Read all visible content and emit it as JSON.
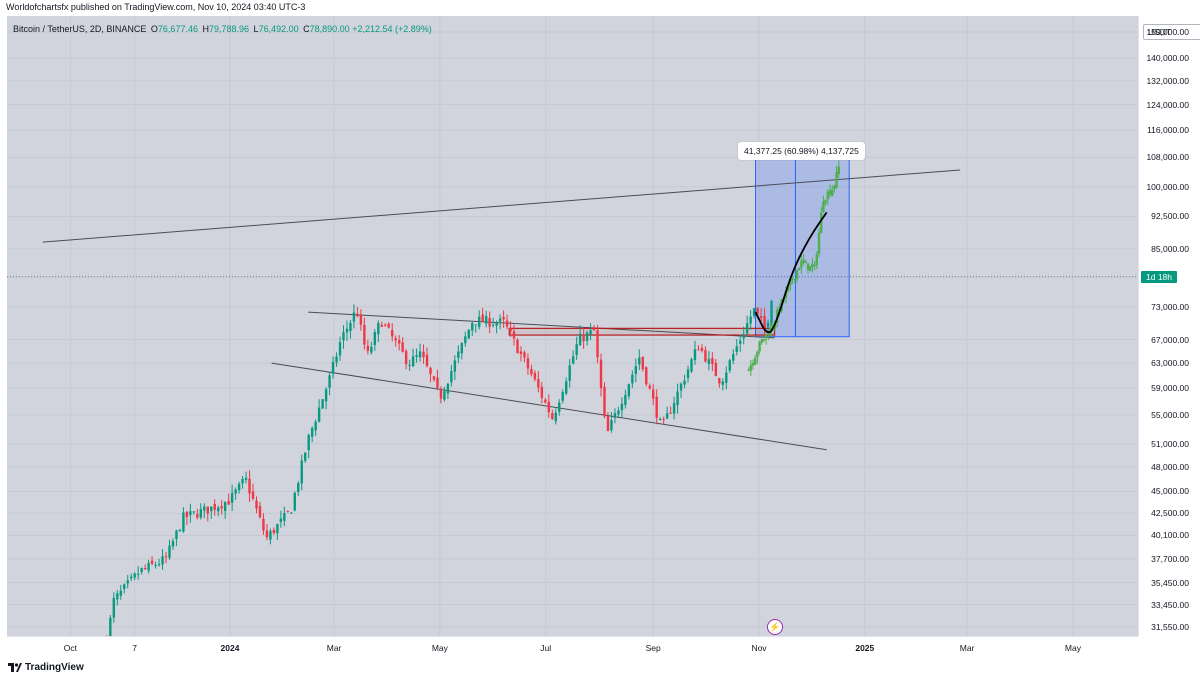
{
  "publisher_line": "Worldofchartsfx published on TradingView.com, Nov 10, 2024 03:40 UTC-3",
  "legend": {
    "symbol": "Bitcoin / TetherUS, 2D, BINANCE",
    "o_key": "O",
    "o_val": "76,677.46",
    "h_key": "H",
    "h_val": "79,788.96",
    "l_key": "L",
    "l_val": "76,492.00",
    "c_key": "C",
    "c_val": "78,890.00",
    "change": "+2,212.54 (+2.89%)"
  },
  "currency": "USDT",
  "countdown": "1d 18h",
  "measure_label": "41,377.25 (60.98%) 4,137,725",
  "footer_logo": "TradingView",
  "colors": {
    "up": "#089981",
    "down": "#f23645",
    "projection": "#4caf50",
    "box": "#2962ff",
    "zone": "#b71c1c"
  },
  "chart_data": {
    "type": "candlestick",
    "title": "",
    "timeframe": "2D",
    "y_ticks": [
      150000,
      140000,
      132000,
      124000,
      116000,
      108000,
      100000,
      92500,
      85000,
      79000,
      73000,
      67000,
      63000,
      59000,
      55000,
      51000,
      48000,
      45000,
      42500,
      40100,
      37700,
      35450,
      33450,
      31550
    ],
    "y_tick_labels": [
      "150,000.00",
      "140,000.00",
      "132,000.00",
      "124,000.00",
      "116,000.00",
      "108,000.00",
      "100,000.00",
      "92,500.00",
      "85,000.00",
      "",
      "73,000.00",
      "67,000.00",
      "63,000.00",
      "59,000.00",
      "55,000.00",
      "51,000.00",
      "48,000.00",
      "45,000.00",
      "42,500.00",
      "40,100.00",
      "37,700.00",
      "35,450.00",
      "33,450.00",
      "31,550.00"
    ],
    "x_ticks": [
      {
        "label": "Oct",
        "date": "2023-10-01",
        "bold": false
      },
      {
        "label": "7",
        "date": "2023-11-07",
        "bold": false
      },
      {
        "label": "2024",
        "date": "2024-01-01",
        "bold": true
      },
      {
        "label": "Mar",
        "date": "2024-03-01",
        "bold": false
      },
      {
        "label": "May",
        "date": "2024-05-01",
        "bold": false
      },
      {
        "label": "Jul",
        "date": "2024-07-01",
        "bold": false
      },
      {
        "label": "Sep",
        "date": "2024-09-01",
        "bold": false
      },
      {
        "label": "Nov",
        "date": "2024-11-01",
        "bold": false
      },
      {
        "label": "2025",
        "date": "2025-01-01",
        "bold": true
      },
      {
        "label": "Mar",
        "date": "2025-03-01",
        "bold": false
      },
      {
        "label": "May",
        "date": "2025-05-01",
        "bold": false
      }
    ],
    "price_path": [
      [
        "2023-10-22",
        30500
      ],
      [
        "2023-10-26",
        33800
      ],
      [
        "2023-11-10",
        36500
      ],
      [
        "2023-11-25",
        37700
      ],
      [
        "2023-12-05",
        42000
      ],
      [
        "2023-12-20",
        43000
      ],
      [
        "2024-01-01",
        44000
      ],
      [
        "2024-01-10",
        46500
      ],
      [
        "2024-01-22",
        39800
      ],
      [
        "2024-02-05",
        42800
      ],
      [
        "2024-02-15",
        51500
      ],
      [
        "2024-02-28",
        61000
      ],
      [
        "2024-03-05",
        67000
      ],
      [
        "2024-03-14",
        72500
      ],
      [
        "2024-03-20",
        64000
      ],
      [
        "2024-03-28",
        70500
      ],
      [
        "2024-04-13",
        63000
      ],
      [
        "2024-04-20",
        64500
      ],
      [
        "2024-05-01",
        57500
      ],
      [
        "2024-05-20",
        70500
      ],
      [
        "2024-06-07",
        70000
      ],
      [
        "2024-06-24",
        60500
      ],
      [
        "2024-07-05",
        54500
      ],
      [
        "2024-07-20",
        67000
      ],
      [
        "2024-07-29",
        68500
      ],
      [
        "2024-08-05",
        52000
      ],
      [
        "2024-08-24",
        64000
      ],
      [
        "2024-09-06",
        53000
      ],
      [
        "2024-09-27",
        66000
      ],
      [
        "2024-10-10",
        60000
      ],
      [
        "2024-10-29",
        72500
      ],
      [
        "2024-11-05",
        68500
      ],
      [
        "2024-11-10",
        78890
      ]
    ],
    "projection_path": [
      [
        "2024-10-26",
        62000
      ],
      [
        "2024-11-02",
        66500
      ],
      [
        "2024-11-08",
        69000
      ],
      [
        "2024-11-15",
        74500
      ],
      [
        "2024-11-25",
        82000
      ],
      [
        "2024-12-03",
        80500
      ],
      [
        "2024-12-08",
        97000
      ],
      [
        "2024-12-14",
        100000
      ],
      [
        "2024-12-18",
        107000
      ]
    ],
    "trendlines": [
      {
        "name": "upper-resistance",
        "from": [
          "2023-09-15",
          86500
        ],
        "to": [
          "2025-02-25",
          104500
        ]
      },
      {
        "name": "wedge-top",
        "from": [
          "2024-02-15",
          72000
        ],
        "to": [
          "2024-11-10",
          67300
        ]
      },
      {
        "name": "wedge-bottom",
        "from": [
          "2024-01-25",
          63000
        ],
        "to": [
          "2024-12-10",
          50200
        ]
      }
    ],
    "curve": [
      [
        "2024-10-30",
        72000
      ],
      [
        "2024-11-06",
        67500
      ],
      [
        "2024-11-11",
        70000
      ],
      [
        "2024-11-20",
        80000
      ],
      [
        "2024-11-30",
        87500
      ],
      [
        "2024-12-10",
        93500
      ]
    ],
    "zone": {
      "from": "2024-06-10",
      "to": "2024-11-10",
      "low": 67800,
      "high": 69000
    },
    "measure_box": {
      "from": "2024-10-30",
      "to": "2024-12-23",
      "low": 67500,
      "high": 109000
    },
    "dotted_price_line": 79000
  }
}
